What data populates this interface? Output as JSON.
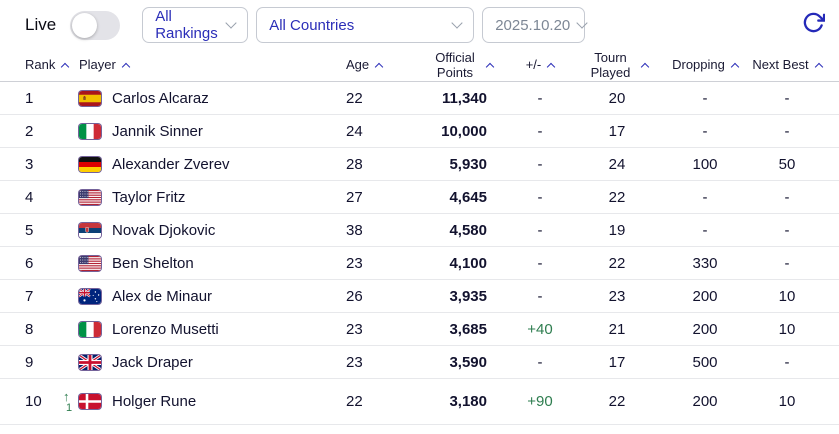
{
  "controls": {
    "live_label": "Live",
    "live_toggle_state": "off",
    "rankings_select": "All Rankings",
    "countries_select": "All Countries",
    "date_select": "2025.10.20",
    "refresh_icon": "refresh-icon"
  },
  "table": {
    "columns": [
      "Rank",
      "Player",
      "Age",
      "Official Points",
      "+/-",
      "Tourn Played",
      "Dropping",
      "Next Best"
    ],
    "rows": [
      {
        "rank": "1",
        "move": null,
        "country": "ESP",
        "player": "Carlos Alcaraz",
        "age": "22",
        "points": "11,340",
        "plus_minus": "-",
        "tourn_played": "20",
        "dropping": "-",
        "next_best": "-"
      },
      {
        "rank": "2",
        "move": null,
        "country": "ITA",
        "player": "Jannik Sinner",
        "age": "24",
        "points": "10,000",
        "plus_minus": "-",
        "tourn_played": "17",
        "dropping": "-",
        "next_best": "-"
      },
      {
        "rank": "3",
        "move": null,
        "country": "GER",
        "player": "Alexander Zverev",
        "age": "28",
        "points": "5,930",
        "plus_minus": "-",
        "tourn_played": "24",
        "dropping": "100",
        "next_best": "50"
      },
      {
        "rank": "4",
        "move": null,
        "country": "USA",
        "player": "Taylor Fritz",
        "age": "27",
        "points": "4,645",
        "plus_minus": "-",
        "tourn_played": "22",
        "dropping": "-",
        "next_best": "-"
      },
      {
        "rank": "5",
        "move": null,
        "country": "SRB",
        "player": "Novak Djokovic",
        "age": "38",
        "points": "4,580",
        "plus_minus": "-",
        "tourn_played": "19",
        "dropping": "-",
        "next_best": "-"
      },
      {
        "rank": "6",
        "move": null,
        "country": "USA",
        "player": "Ben Shelton",
        "age": "23",
        "points": "4,100",
        "plus_minus": "-",
        "tourn_played": "22",
        "dropping": "330",
        "next_best": "-"
      },
      {
        "rank": "7",
        "move": null,
        "country": "AUS",
        "player": "Alex de Minaur",
        "age": "26",
        "points": "3,935",
        "plus_minus": "-",
        "tourn_played": "23",
        "dropping": "200",
        "next_best": "10"
      },
      {
        "rank": "8",
        "move": null,
        "country": "ITA",
        "player": "Lorenzo Musetti",
        "age": "23",
        "points": "3,685",
        "plus_minus": "+40",
        "tourn_played": "21",
        "dropping": "200",
        "next_best": "10"
      },
      {
        "rank": "9",
        "move": null,
        "country": "GBR",
        "player": "Jack Draper",
        "age": "23",
        "points": "3,590",
        "plus_minus": "-",
        "tourn_played": "17",
        "dropping": "500",
        "next_best": "-"
      },
      {
        "rank": "10",
        "move": {
          "dir": "up",
          "amount": "1"
        },
        "country": "DEN",
        "player": "Holger Rune",
        "age": "22",
        "points": "3,180",
        "plus_minus": "+90",
        "tourn_played": "22",
        "dropping": "200",
        "next_best": "10"
      }
    ]
  },
  "colors": {
    "accent": "#2b2eb8",
    "positive": "#2e7d4f",
    "date_text": "#7d8795"
  }
}
